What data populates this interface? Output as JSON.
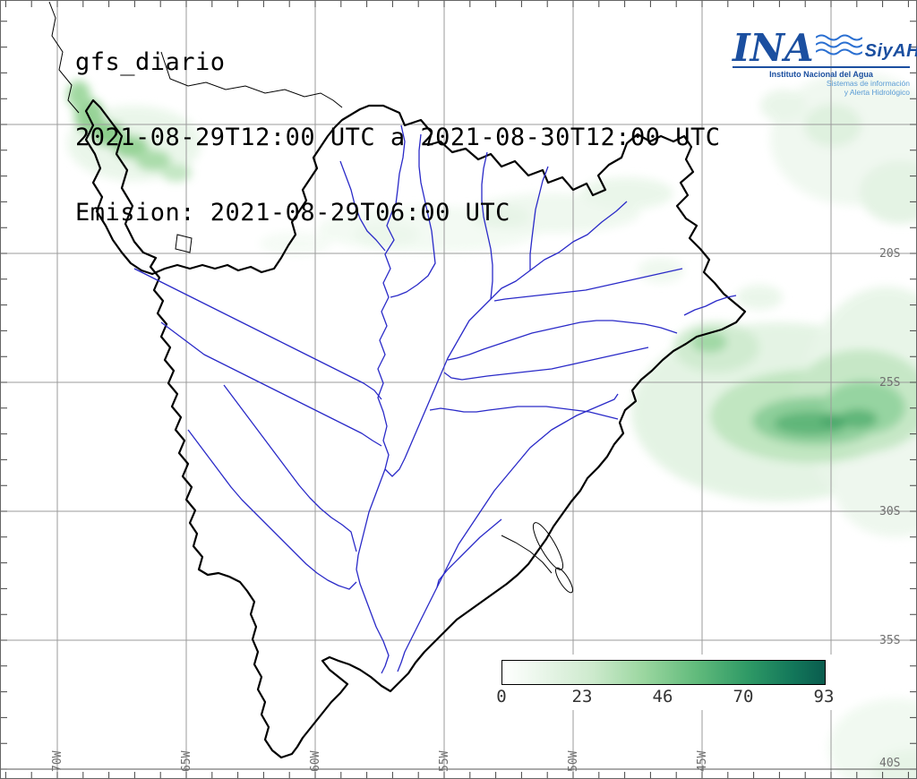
{
  "header": {
    "line1": "gfs_diario",
    "line2": "2021-08-29T12:00 UTC a 2021-08-30T12:00 UTC",
    "line3": "Emision: 2021-08-29T06:00 UTC"
  },
  "logo": {
    "ina": "INA",
    "siyah": "SiyAH",
    "institution": "Instituto Nacional del Agua",
    "tagline_line1": "Sistemas de información",
    "tagline_line2": "y Alerta Hidrológico",
    "brand_color": "#1b4fa0",
    "wave_color": "#2a6fd1",
    "tagline_color": "#5a9bd5"
  },
  "map": {
    "lat_labels": [
      "20S",
      "25S",
      "30S",
      "35S",
      "40S"
    ],
    "lon_labels": [
      "70W",
      "65W",
      "60W",
      "55W",
      "50W",
      "45W"
    ],
    "grid_color": "#9b9b9b",
    "river_color": "#2a2ac8",
    "outline_color": "#000000",
    "precip_light": "#e3f3e3",
    "precip_dark": "#3da361"
  },
  "colorbar": {
    "tick_labels": [
      "0",
      "23",
      "46",
      "70",
      "93"
    ],
    "min": 0,
    "max": 93,
    "gradient": [
      "#ffffff",
      "#cdeacd",
      "#9ad69f",
      "#62bb7c",
      "#2f9a66",
      "#0a5c4e"
    ]
  }
}
